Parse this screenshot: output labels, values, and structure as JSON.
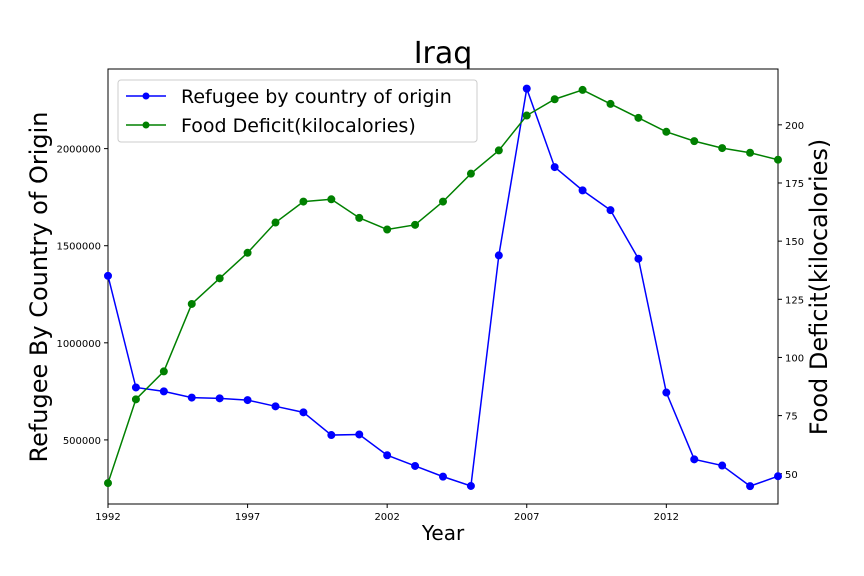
{
  "chart_data": {
    "type": "line",
    "title": "Iraq",
    "xlabel": "Year",
    "ylabel": "Refugee By Country of Origin",
    "y2label": "Food Deficit(kilocalories)",
    "xlim": [
      1992,
      2016
    ],
    "ylim": [
      170000,
      2410000
    ],
    "y2lim": [
      37,
      224
    ],
    "x_ticks": [
      1992,
      1997,
      2002,
      2007,
      2012
    ],
    "y_ticks": [
      500000,
      1000000,
      1500000,
      2000000
    ],
    "y2_ticks": [
      50,
      75,
      100,
      125,
      150,
      175,
      200
    ],
    "grid": false,
    "legend_position": "top-left",
    "x": [
      1992,
      1993,
      1994,
      1995,
      1996,
      1997,
      1998,
      1999,
      2000,
      2001,
      2002,
      2003,
      2004,
      2005,
      2006,
      2007,
      2008,
      2009,
      2010,
      2011,
      2012,
      2013,
      2014,
      2015,
      2016
    ],
    "series": [
      {
        "name": "Refugee by country of origin",
        "axis": "left",
        "color": "#0000ff",
        "values": [
          1345000,
          770000,
          750000,
          718000,
          714000,
          705000,
          673000,
          642000,
          525000,
          528000,
          421000,
          366000,
          311000,
          263000,
          1450000,
          2309000,
          1905000,
          1785000,
          1683000,
          1433000,
          744000,
          400000,
          368000,
          262000,
          313000
        ]
      },
      {
        "name": "Food Deficit(kilocalories)",
        "axis": "right",
        "color": "#008000",
        "values": [
          46,
          82,
          94,
          123,
          134,
          145,
          158,
          167,
          168,
          160,
          155,
          157,
          167,
          179,
          189,
          204,
          211,
          215,
          209,
          203,
          197,
          193,
          190,
          188,
          185
        ]
      }
    ]
  }
}
